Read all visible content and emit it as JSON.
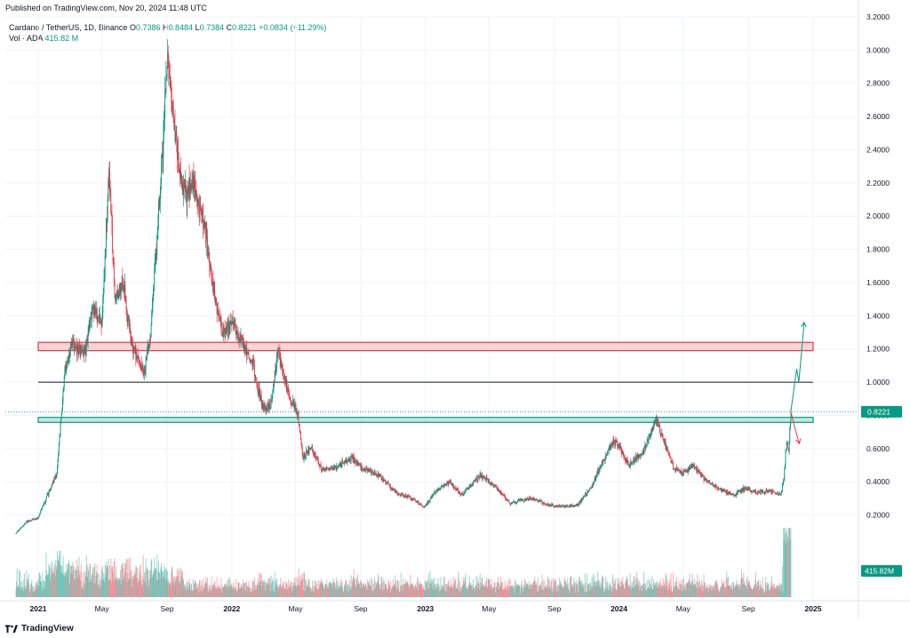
{
  "header": {
    "published": "Published on TradingView.com, Nov 20, 2024 11:48 UTC"
  },
  "legend": {
    "symbol": "Cardano / TetherUS, 1D, Binance",
    "open_label": "O",
    "open_value": "0.7386",
    "high_label": "H",
    "high_value": "0.8484",
    "low_label": "L",
    "low_value": "0.7384",
    "close_label": "C",
    "close_value": "0.8221",
    "change": "+0.0834 (+11.29%)",
    "vol_label": "Vol · ADA",
    "vol_value": "415.82 M"
  },
  "footer": {
    "brand": "TradingView"
  },
  "colors": {
    "up": "#089981",
    "down": "#f23645",
    "grid": "#f0f3fa",
    "resistance_fill": "#f7c6c9",
    "resistance_border": "#f23645",
    "support_fill": "#b2dfd4",
    "support_border": "#089981",
    "line": "#131722"
  },
  "chart_data": {
    "type": "candlestick",
    "title": "Cardano / TetherUS, 1D, Binance",
    "ylim": [
      0.08,
      3.2
    ],
    "y_ticks": [
      "3.2000",
      "3.0000",
      "2.8000",
      "2.6000",
      "2.4000",
      "2.2000",
      "2.0000",
      "1.8000",
      "1.6000",
      "1.4000",
      "1.2000",
      "1.0000",
      "0.8000",
      "0.6000",
      "0.4000",
      "0.2000"
    ],
    "x_ticks": [
      {
        "label": "2021",
        "date": "2021-01-01",
        "bold": true
      },
      {
        "label": "May",
        "date": "2021-05-01",
        "bold": false
      },
      {
        "label": "Sep",
        "date": "2021-09-01",
        "bold": false
      },
      {
        "label": "2022",
        "date": "2022-01-01",
        "bold": true
      },
      {
        "label": "May",
        "date": "2022-05-01",
        "bold": false
      },
      {
        "label": "Sep",
        "date": "2022-09-01",
        "bold": false
      },
      {
        "label": "2023",
        "date": "2023-01-01",
        "bold": true
      },
      {
        "label": "May",
        "date": "2023-05-01",
        "bold": false
      },
      {
        "label": "Sep",
        "date": "2023-09-01",
        "bold": false
      },
      {
        "label": "2024",
        "date": "2024-01-01",
        "bold": true
      },
      {
        "label": "May",
        "date": "2024-05-01",
        "bold": false
      },
      {
        "label": "Sep",
        "date": "2024-09-01",
        "bold": false
      },
      {
        "label": "2025",
        "date": "2025-01-01",
        "bold": true
      }
    ],
    "price_path": [
      [
        "2020-11-20",
        0.09
      ],
      [
        "2020-12-10",
        0.16
      ],
      [
        "2020-12-31",
        0.18
      ],
      [
        "2021-01-20",
        0.33
      ],
      [
        "2021-02-05",
        0.45
      ],
      [
        "2021-02-20",
        1.05
      ],
      [
        "2021-03-05",
        1.25
      ],
      [
        "2021-03-20",
        1.18
      ],
      [
        "2021-04-01",
        1.22
      ],
      [
        "2021-04-15",
        1.45
      ],
      [
        "2021-05-01",
        1.35
      ],
      [
        "2021-05-15",
        2.3
      ],
      [
        "2021-05-25",
        1.5
      ],
      [
        "2021-06-10",
        1.6
      ],
      [
        "2021-06-25",
        1.25
      ],
      [
        "2021-07-20",
        1.05
      ],
      [
        "2021-08-01",
        1.3
      ],
      [
        "2021-08-20",
        2.2
      ],
      [
        "2021-09-02",
        2.95
      ],
      [
        "2021-09-15",
        2.5
      ],
      [
        "2021-10-01",
        2.15
      ],
      [
        "2021-10-20",
        2.2
      ],
      [
        "2021-11-05",
        2.05
      ],
      [
        "2021-11-25",
        1.6
      ],
      [
        "2021-12-15",
        1.3
      ],
      [
        "2022-01-01",
        1.35
      ],
      [
        "2022-01-20",
        1.25
      ],
      [
        "2022-02-10",
        1.1
      ],
      [
        "2022-02-28",
        0.85
      ],
      [
        "2022-03-15",
        0.85
      ],
      [
        "2022-03-29",
        1.2
      ],
      [
        "2022-04-20",
        0.9
      ],
      [
        "2022-05-05",
        0.82
      ],
      [
        "2022-05-15",
        0.55
      ],
      [
        "2022-06-01",
        0.6
      ],
      [
        "2022-06-20",
        0.47
      ],
      [
        "2022-07-15",
        0.48
      ],
      [
        "2022-08-15",
        0.55
      ],
      [
        "2022-09-05",
        0.48
      ],
      [
        "2022-10-01",
        0.45
      ],
      [
        "2022-11-10",
        0.33
      ],
      [
        "2022-12-01",
        0.31
      ],
      [
        "2022-12-30",
        0.25
      ],
      [
        "2023-01-20",
        0.34
      ],
      [
        "2023-02-15",
        0.4
      ],
      [
        "2023-03-10",
        0.32
      ],
      [
        "2023-04-15",
        0.44
      ],
      [
        "2023-05-10",
        0.38
      ],
      [
        "2023-06-10",
        0.27
      ],
      [
        "2023-07-01",
        0.29
      ],
      [
        "2023-07-20",
        0.3
      ],
      [
        "2023-08-20",
        0.26
      ],
      [
        "2023-09-15",
        0.25
      ],
      [
        "2023-10-15",
        0.26
      ],
      [
        "2023-11-10",
        0.37
      ],
      [
        "2023-12-10",
        0.58
      ],
      [
        "2023-12-25",
        0.65
      ],
      [
        "2024-01-20",
        0.5
      ],
      [
        "2024-02-15",
        0.58
      ],
      [
        "2024-03-12",
        0.78
      ],
      [
        "2024-03-25",
        0.65
      ],
      [
        "2024-04-13",
        0.48
      ],
      [
        "2024-05-01",
        0.45
      ],
      [
        "2024-05-20",
        0.5
      ],
      [
        "2024-06-15",
        0.4
      ],
      [
        "2024-07-05",
        0.36
      ],
      [
        "2024-08-05",
        0.32
      ],
      [
        "2024-08-25",
        0.36
      ],
      [
        "2024-09-15",
        0.34
      ],
      [
        "2024-10-15",
        0.34
      ],
      [
        "2024-11-01",
        0.32
      ],
      [
        "2024-11-07",
        0.43
      ],
      [
        "2024-11-12",
        0.65
      ],
      [
        "2024-11-16",
        0.58
      ],
      [
        "2024-11-20",
        0.8221
      ]
    ],
    "zones": [
      {
        "name": "resistance",
        "low": 1.19,
        "high": 1.24
      },
      {
        "name": "support",
        "low": 0.758,
        "high": 0.788
      }
    ],
    "level_line": 1.0,
    "current_price": 0.8221,
    "current_price_label": "0.8221",
    "volume_label": "415.82M",
    "projection_up": [
      [
        "2024-11-20",
        0.8221
      ],
      [
        "2024-12-01",
        1.08
      ],
      [
        "2024-12-05",
        1.0
      ],
      [
        "2024-12-15",
        1.36
      ]
    ],
    "projection_down": [
      [
        "2024-11-20",
        0.8221
      ],
      [
        "2024-11-28",
        0.72
      ],
      [
        "2024-12-06",
        0.63
      ]
    ]
  }
}
